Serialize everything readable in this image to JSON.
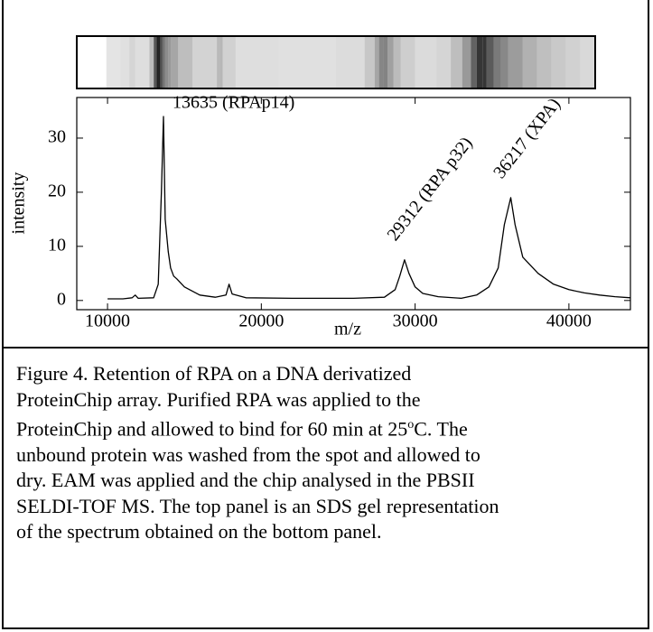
{
  "chart_data": {
    "type": "line",
    "xlabel": "m/z",
    "ylabel": "intensity",
    "color": "#000000",
    "x": [
      10000,
      11000,
      11600,
      11800,
      12000,
      13000,
      13300,
      13500,
      13635,
      13750,
      13850,
      13950,
      14100,
      14300,
      14500,
      15000,
      16000,
      17000,
      17700,
      17900,
      18100,
      19000,
      22000,
      26000,
      28000,
      28700,
      29000,
      29312,
      29600,
      30000,
      30500,
      31500,
      33000,
      34000,
      34800,
      35400,
      35800,
      36217,
      36500,
      37000,
      37500,
      38000,
      39000,
      40000,
      41000,
      42000,
      43000,
      44000
    ],
    "values": [
      0.3,
      0.3,
      0.5,
      1,
      0.4,
      0.5,
      3,
      20,
      34,
      15,
      12,
      9,
      6,
      4.5,
      4,
      2.5,
      1,
      0.6,
      1,
      3,
      1.2,
      0.5,
      0.4,
      0.4,
      0.6,
      2,
      4.5,
      7.5,
      5,
      2.5,
      1.3,
      0.7,
      0.4,
      1,
      2.5,
      6,
      14,
      19,
      14,
      8,
      6.5,
      5,
      3,
      2,
      1.4,
      1,
      0.7,
      0.5
    ],
    "xlim": [
      8000,
      44000
    ],
    "ylim": [
      -1.7,
      37.5
    ],
    "xticks": [
      10000,
      20000,
      30000,
      40000
    ],
    "yticks": [
      0,
      10,
      20,
      30
    ],
    "annotations": [
      {
        "text": "13635 (RPAp14)",
        "x": 13635,
        "y": 34
      },
      {
        "text": "29312 (RPA p32)",
        "x": 29312,
        "y": 7.5
      },
      {
        "text": "36217 (XPA)",
        "x": 36217,
        "y": 19
      }
    ]
  },
  "caption": {
    "lines": [
      "Figure 4.  Retention of RPA on a DNA derivatized",
      "ProteinChip array.  Purified RPA was applied to the",
      [
        "ProteinChip and allowed to bind for 60 min at 25",
        "o",
        "C.  The"
      ],
      "unbound protein was washed from the spot and allowed to",
      "dry.  EAM was applied and the chip analysed in the PBSII",
      "SELDI-TOF MS. The top panel is an SDS gel representation",
      "of the spectrum obtained on the bottom panel."
    ]
  }
}
